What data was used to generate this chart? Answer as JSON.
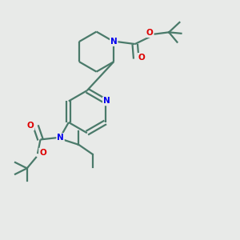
{
  "background_color": "#e8eae8",
  "bond_color": "#4a7a6a",
  "N_color": "#0000ee",
  "O_color": "#dd0000",
  "line_width": 1.6,
  "figsize": [
    3.0,
    3.0
  ],
  "dpi": 100,
  "xlim": [
    0,
    10
  ],
  "ylim": [
    0,
    10
  ]
}
